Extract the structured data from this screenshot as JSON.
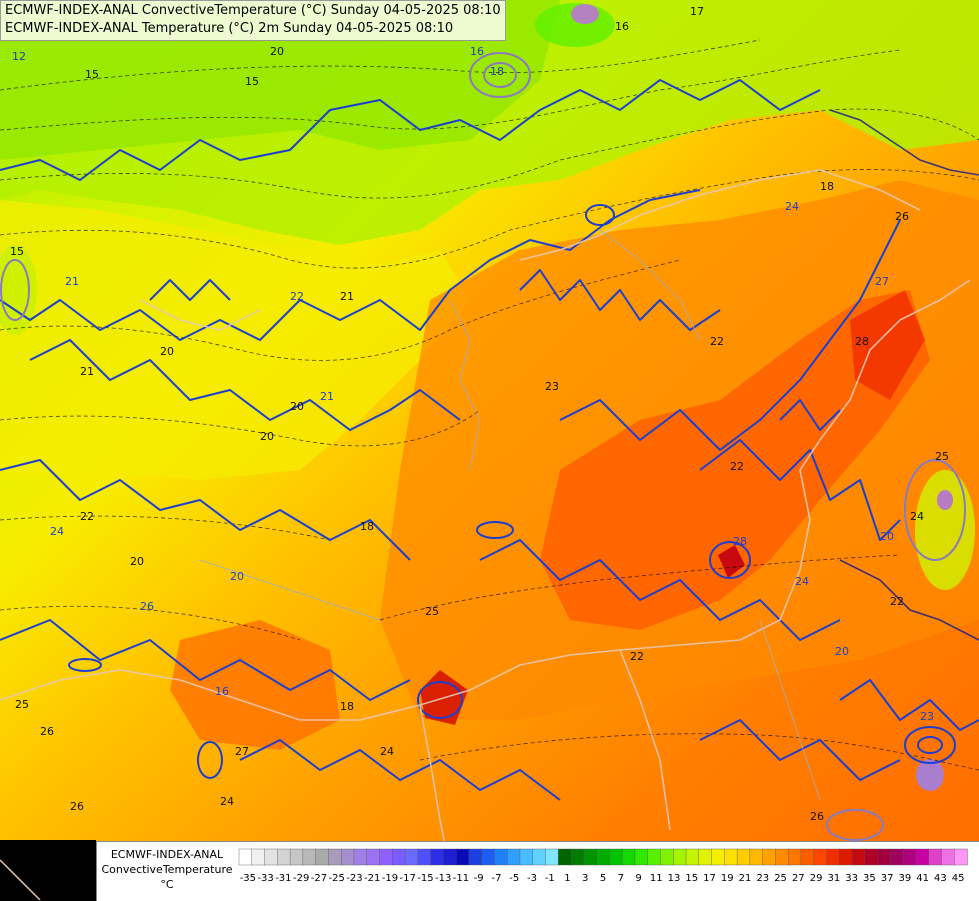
{
  "titles": {
    "line1": "ECMWF-INDEX-ANAL ConvectiveTemperature (°C) Sunday 04-05-2025 08:10",
    "line2": "ECMWF-INDEX-ANAL Temperature (°C) 2m Sunday 04-05-2025 08:10"
  },
  "legend": {
    "line1": "ECMWF-INDEX-ANAL",
    "line2": "ConvectiveTemperature",
    "unit": "°C",
    "ticks": [
      "-35",
      "-33",
      "-31",
      "-29",
      "-27",
      "-25",
      "-23",
      "-21",
      "-19",
      "-17",
      "-15",
      "-13",
      "-11",
      "-9",
      "-7",
      "-5",
      "-3",
      "-1",
      "1",
      "3",
      "5",
      "7",
      "9",
      "11",
      "13",
      "15",
      "17",
      "19",
      "21",
      "23",
      "25",
      "27",
      "29",
      "31",
      "33",
      "35",
      "37",
      "39",
      "41",
      "43",
      "45"
    ],
    "colors": [
      "#ffffff",
      "#f0f0f0",
      "#e2e2e2",
      "#d4d4d4",
      "#c6c6c6",
      "#b8b8b8",
      "#aaaaaa",
      "#a89cba",
      "#a58fd0",
      "#a080e6",
      "#9a72f2",
      "#9060ff",
      "#7a5cff",
      "#6a6aff",
      "#5050f8",
      "#2e2ee8",
      "#1e1ed2",
      "#0a0ab8",
      "#1b3fe0",
      "#1d5ef0",
      "#2080f8",
      "#30a0ff",
      "#48bcff",
      "#60d2ff",
      "#80e6ff",
      "#006400",
      "#007c00",
      "#009400",
      "#00ac00",
      "#00c400",
      "#12d800",
      "#30e800",
      "#58f000",
      "#80f200",
      "#a4f400",
      "#c4f400",
      "#e0f200",
      "#f6ee00",
      "#fde000",
      "#ffcc00",
      "#ffb800",
      "#ffa200",
      "#ff8c00",
      "#ff7600",
      "#ff5e00",
      "#ff4600",
      "#f02e00",
      "#dc1a00",
      "#c40a10",
      "#b00028",
      "#a00040",
      "#a00060",
      "#b00080",
      "#c800a4",
      "#e040c8",
      "#f070e6",
      "#ff98f4"
    ]
  },
  "contour_labels": [
    "12",
    "15",
    "15",
    "16",
    "16",
    "17",
    "18",
    "18",
    "20",
    "21",
    "15",
    "21",
    "22",
    "20",
    "20",
    "21",
    "21",
    "20",
    "20",
    "23",
    "25",
    "24",
    "24",
    "22",
    "26",
    "26",
    "26",
    "27",
    "28",
    "22",
    "28",
    "25",
    "24",
    "20",
    "22",
    "18",
    "20",
    "27",
    "26",
    "24",
    "25",
    "24",
    "23",
    "26",
    "20",
    "24",
    "22",
    "22",
    "16",
    "18"
  ],
  "colors": {
    "title_bg": "#ffffff",
    "ct_contour": "#1d3fd0",
    "t2m_contour": "#000000",
    "border": "#e6c8b4"
  }
}
